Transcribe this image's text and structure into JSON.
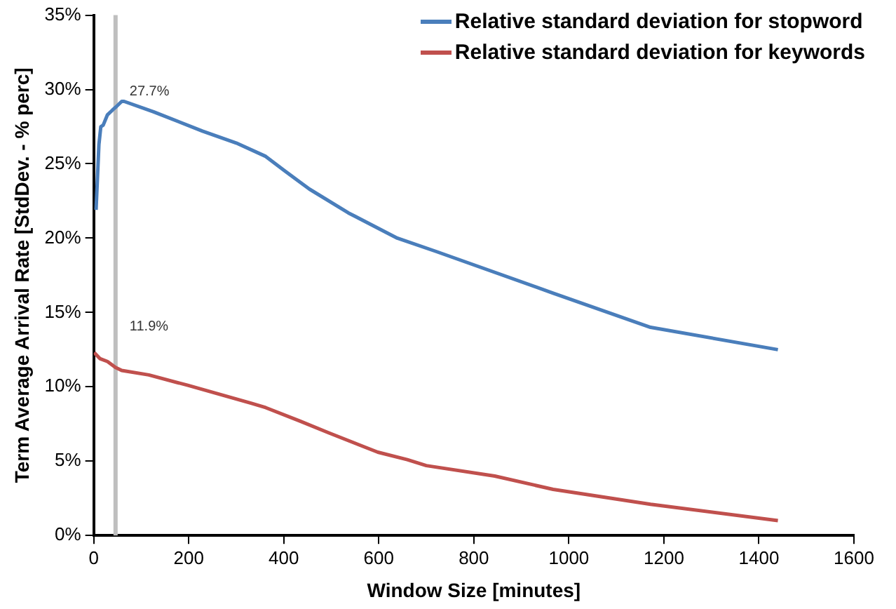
{
  "chart_data": {
    "type": "line",
    "xlabel": "Window Size [minutes]",
    "ylabel": "Term Average Arrival Rate [StdDev. - % perc]",
    "x": [
      5,
      11,
      15,
      20,
      29,
      39,
      46,
      59,
      64,
      126,
      229,
      300,
      362,
      403,
      454,
      536,
      639,
      721,
      967,
      1172,
      1440
    ],
    "series": [
      {
        "name": "Relative standard deviation for stopword",
        "color": "#4a7ebb",
        "values": [
          21.9,
          26.3,
          27.5,
          27.6,
          28.3,
          28.6,
          28.8,
          29.2,
          29.2,
          28.5,
          27.2,
          26.4,
          25.5,
          24.5,
          23.3,
          21.7,
          20.0,
          19.1,
          16.3,
          14.0,
          12.5
        ]
      },
      {
        "name": "Relative standard deviation for keywords",
        "color": "#c0504d",
        "x": [
          1,
          13,
          29,
          46,
          59,
          116,
          198,
          331,
          362,
          434,
          495,
          598,
          660,
          700,
          844,
          967,
          1172,
          1440
        ],
        "values": [
          12.3,
          11.9,
          11.7,
          11.3,
          11.1,
          10.8,
          10.1,
          8.9,
          8.6,
          7.7,
          6.9,
          5.6,
          5.1,
          4.7,
          4.0,
          3.1,
          2.1,
          1.0
        ]
      }
    ],
    "xlim": [
      0,
      1600
    ],
    "xticks": [
      0,
      200,
      400,
      600,
      800,
      1000,
      1200,
      1400,
      1600
    ],
    "ylim": [
      0,
      35
    ],
    "yticks": [
      {
        "value": 0,
        "label": "0%"
      },
      {
        "value": 5,
        "label": "5%"
      },
      {
        "value": 10,
        "label": "10%"
      },
      {
        "value": 15,
        "label": "15%"
      },
      {
        "value": 20,
        "label": "20%"
      },
      {
        "value": 25,
        "label": "25%"
      },
      {
        "value": 30,
        "label": "30%"
      },
      {
        "value": 35,
        "label": "35%"
      }
    ],
    "ref_lines": [
      {
        "axis": "x",
        "value": 46,
        "color": "#bfbfbf"
      }
    ],
    "annotations": [
      {
        "text": "27.7%",
        "x": 46,
        "y": 27.7
      },
      {
        "text": "11.9%",
        "x": 46,
        "y": 11.9
      }
    ],
    "grid": false,
    "legend": "top right",
    "marker": "none",
    "line_style": "solid"
  }
}
